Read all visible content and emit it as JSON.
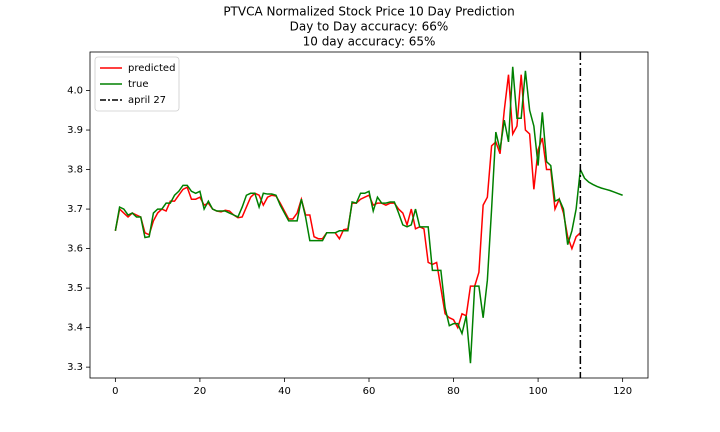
{
  "chart_data": {
    "type": "line",
    "title": "PTVCA Normalized Stock Price 10 Day Prediction",
    "subtitle": [
      "Day to Day accuracy: 66%",
      "10 day accuracy: 65%"
    ],
    "x": [
      0,
      1,
      2,
      3,
      4,
      5,
      6,
      7,
      8,
      9,
      10,
      11,
      12,
      13,
      14,
      15,
      16,
      17,
      18,
      19,
      20,
      21,
      22,
      23,
      24,
      25,
      26,
      27,
      28,
      29,
      30,
      31,
      32,
      33,
      34,
      35,
      36,
      37,
      38,
      39,
      40,
      41,
      42,
      43,
      44,
      45,
      46,
      47,
      48,
      49,
      50,
      51,
      52,
      53,
      54,
      55,
      56,
      57,
      58,
      59,
      60,
      61,
      62,
      63,
      64,
      65,
      66,
      67,
      68,
      69,
      70,
      71,
      72,
      73,
      74,
      75,
      76,
      77,
      78,
      79,
      80,
      81,
      82,
      83,
      84,
      85,
      86,
      87,
      88,
      89,
      90,
      91,
      92,
      93,
      94,
      95,
      96,
      97,
      98,
      99,
      100,
      101,
      102,
      103,
      104,
      105,
      106,
      107,
      108,
      109,
      110,
      111,
      112,
      113,
      114,
      115,
      116,
      117,
      118,
      119,
      120
    ],
    "series": [
      {
        "name": "predicted",
        "color": "#ff0000",
        "values": [
          3.645,
          3.7,
          3.69,
          3.68,
          3.69,
          3.685,
          3.68,
          3.64,
          3.635,
          3.67,
          3.69,
          3.7,
          3.695,
          3.72,
          3.72,
          3.735,
          3.75,
          3.755,
          3.725,
          3.725,
          3.73,
          3.71,
          3.715,
          3.7,
          3.695,
          3.693,
          3.697,
          3.695,
          3.685,
          3.678,
          3.68,
          3.705,
          3.73,
          3.74,
          3.735,
          3.71,
          3.73,
          3.735,
          3.733,
          3.715,
          3.695,
          3.675,
          3.675,
          3.69,
          3.725,
          3.685,
          3.685,
          3.63,
          3.625,
          3.625,
          3.64,
          3.64,
          3.64,
          3.625,
          3.648,
          3.65,
          3.715,
          3.715,
          3.725,
          3.73,
          3.735,
          3.71,
          3.715,
          3.715,
          3.71,
          3.715,
          3.715,
          3.7,
          3.69,
          3.66,
          3.7,
          3.65,
          3.655,
          3.65,
          3.565,
          3.56,
          3.565,
          3.5,
          3.435,
          3.425,
          3.42,
          3.4,
          3.435,
          3.43,
          3.505,
          3.505,
          3.54,
          3.71,
          3.73,
          3.86,
          3.87,
          3.84,
          3.95,
          4.04,
          3.89,
          3.91,
          4.04,
          3.9,
          3.89,
          3.75,
          3.85,
          3.88,
          3.8,
          3.8,
          3.7,
          3.725,
          3.69,
          3.63,
          3.6,
          3.63,
          3.64,
          null,
          null,
          null,
          null,
          null,
          null,
          null,
          null,
          null,
          null
        ]
      },
      {
        "name": "true",
        "color": "#008000",
        "values": [
          3.645,
          3.705,
          3.7,
          3.685,
          3.69,
          3.68,
          3.68,
          3.628,
          3.63,
          3.69,
          3.7,
          3.7,
          3.715,
          3.715,
          3.735,
          3.745,
          3.76,
          3.76,
          3.745,
          3.74,
          3.745,
          3.7,
          3.72,
          3.7,
          3.695,
          3.695,
          3.695,
          3.69,
          3.685,
          3.68,
          3.705,
          3.735,
          3.74,
          3.74,
          3.705,
          3.74,
          3.738,
          3.738,
          3.735,
          3.71,
          3.69,
          3.67,
          3.67,
          3.67,
          3.725,
          3.68,
          3.62,
          3.62,
          3.62,
          3.62,
          3.64,
          3.64,
          3.64,
          3.645,
          3.645,
          3.645,
          3.718,
          3.715,
          3.74,
          3.74,
          3.745,
          3.695,
          3.73,
          3.715,
          3.715,
          3.718,
          3.718,
          3.69,
          3.66,
          3.655,
          3.66,
          3.7,
          3.655,
          3.655,
          3.655,
          3.545,
          3.545,
          3.545,
          3.45,
          3.405,
          3.41,
          3.41,
          3.385,
          3.43,
          3.31,
          3.505,
          3.505,
          3.425,
          3.52,
          3.7,
          3.895,
          3.85,
          3.925,
          3.87,
          4.06,
          3.93,
          3.93,
          4.05,
          3.95,
          3.91,
          3.81,
          3.945,
          3.82,
          3.81,
          3.72,
          3.725,
          3.7,
          3.61,
          3.645,
          3.7,
          3.8,
          3.778,
          3.768,
          3.762,
          3.757,
          3.753,
          3.75,
          3.747,
          3.743,
          3.739,
          3.735
        ]
      }
    ],
    "vline": {
      "x": 110,
      "name": "april 27",
      "color": "#000000"
    },
    "xlim": [
      -6,
      126
    ],
    "xticks": [
      0,
      20,
      40,
      60,
      80,
      100,
      120
    ],
    "ylim": [
      3.2725,
      4.0975
    ],
    "yticks": [
      3.3,
      3.4,
      3.5,
      3.6,
      3.7,
      3.8,
      3.9,
      {
        "value": 4,
        "label": "4.0"
      }
    ],
    "legend": "upper left",
    "grid": false
  }
}
